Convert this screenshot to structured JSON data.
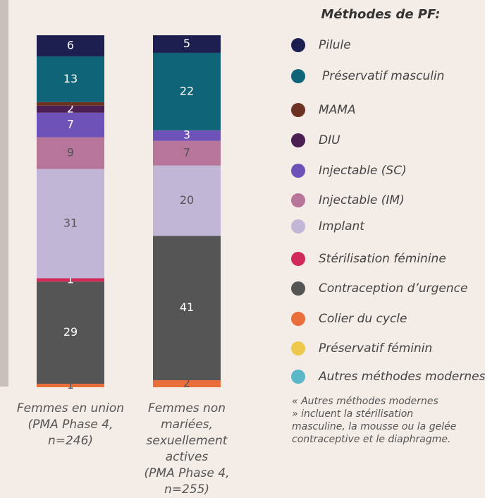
{
  "chart_data": {
    "type": "stacked_bar",
    "legend_title": "Méthodes de PF:",
    "categories": [
      "Femmes en union\n(PMA Phase 4,\nn=246)",
      "Femmes non mariées,\nsexuellement actives\n(PMA Phase 4, n=255)"
    ],
    "series": [
      {
        "name": "Colier du cycle",
        "color": "#e96e3a",
        "values": [
          1,
          2
        ]
      },
      {
        "name": "Contraception d’urgence",
        "color": "#555555",
        "values": [
          29,
          41
        ]
      },
      {
        "name": "Stérilisation féminine",
        "color": "#cf2a5a",
        "values": [
          1,
          0
        ]
      },
      {
        "name": "Implant",
        "color": "#c1b6d6",
        "values": [
          31,
          20
        ]
      },
      {
        "name": "Injectable (IM)",
        "color": "#b77599",
        "values": [
          9,
          7
        ]
      },
      {
        "name": "Injectable (SC)",
        "color": "#6e52b8",
        "values": [
          7,
          3
        ]
      },
      {
        "name": "DIU",
        "color": "#4b1f52",
        "values": [
          2,
          0
        ]
      },
      {
        "name": "MAMA",
        "color": "#6b3221",
        "values": [
          1,
          0
        ],
        "value_labels": [
          null,
          null
        ]
      },
      {
        "name": "Préservatif masculin",
        "color": "#0f6577",
        "values": [
          13,
          22
        ]
      },
      {
        "name": "Pilule",
        "color": "#1c1f4f",
        "values": [
          6,
          5
        ]
      },
      {
        "name": "Préservatif féminin",
        "color": "#edc84b",
        "values": [
          0,
          0
        ]
      },
      {
        "name": "Autres méthodes modernes",
        "color": "#5bb8c9",
        "values": [
          0,
          0
        ]
      }
    ],
    "legend_order": [
      9,
      8,
      7,
      6,
      5,
      4,
      3,
      2,
      1,
      0,
      10,
      11
    ],
    "ylim": [
      0,
      100
    ],
    "note": "« Autres méthodes modernes\n» incluent la stérilisation\nmasculine, la mousse ou la gelée\ncontraceptive et le diaphragme."
  }
}
